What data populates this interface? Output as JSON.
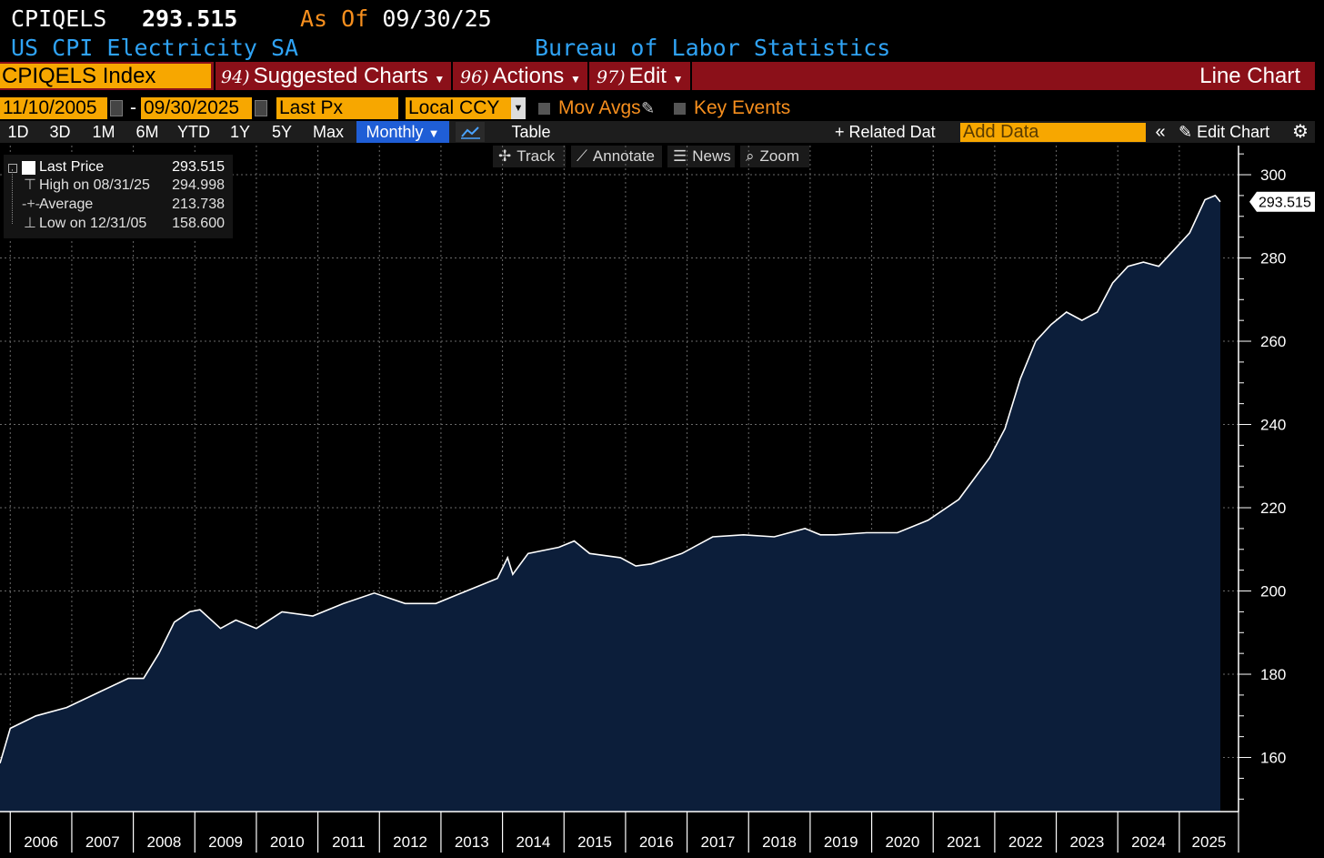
{
  "header": {
    "ticker": "CPIQELS",
    "last_price": "293.515",
    "as_of_label": "As Of",
    "as_of_date": "09/30/25",
    "name": "US CPI Electricity SA",
    "source": "Bureau of Labor Statistics"
  },
  "toolbar": {
    "security": "CPIQELS Index",
    "suggested_num": "94)",
    "suggested_label": "Suggested Charts",
    "actions_num": "96)",
    "actions_label": "Actions",
    "edit_num": "97)",
    "edit_label": "Edit",
    "chart_type": "Line Chart"
  },
  "params": {
    "start_date": "11/10/2005",
    "date_sep": "-",
    "end_date": "09/30/2025",
    "field": "Last Px",
    "currency": "Local CCY",
    "mov_avgs": "Mov Avgs",
    "key_events": "Key Events"
  },
  "periods": {
    "items": [
      "1D",
      "3D",
      "1M",
      "6M",
      "YTD",
      "1Y",
      "5Y",
      "Max"
    ],
    "monthly": "Monthly",
    "table": "Table",
    "related": "Related Dat",
    "add_data_placeholder": "Add Data",
    "edit_chart": "Edit Chart"
  },
  "tools": {
    "track": "Track",
    "annotate": "Annotate",
    "news": "News",
    "zoom": "Zoom"
  },
  "legend": {
    "last_label": "Last Price",
    "last_value": "293.515",
    "high_label": "High on 08/31/25",
    "high_value": "294.998",
    "avg_label": "Average",
    "avg_value": "213.738",
    "low_label": "Low on 12/31/05",
    "low_value": "158.600"
  },
  "colors": {
    "accent_orange": "#f7a700",
    "toolbar_red": "#8b1019",
    "area_fill": "#0c1e3a",
    "header_blue": "#2fa3f5",
    "date_orange": "#f78f1e"
  },
  "chart_data": {
    "type": "area",
    "x_start": "2005-11",
    "x_end": "2025-09",
    "x_ticks": [
      "2006",
      "2007",
      "2008",
      "2009",
      "2010",
      "2011",
      "2012",
      "2013",
      "2014",
      "2015",
      "2016",
      "2017",
      "2018",
      "2019",
      "2020",
      "2021",
      "2022",
      "2023",
      "2024",
      "2025"
    ],
    "y_ticks": [
      160,
      180,
      200,
      220,
      240,
      260,
      280,
      300
    ],
    "ylim": [
      147,
      307
    ],
    "last_value_label": "293.515",
    "grid": true,
    "axis_side": "right",
    "series": [
      {
        "x": [
          "2005-11",
          "2006-01",
          "2006-06",
          "2006-12",
          "2007-06",
          "2007-12",
          "2008-03",
          "2008-06",
          "2008-09",
          "2008-12",
          "2009-02",
          "2009-06",
          "2009-09",
          "2010-01",
          "2010-06",
          "2010-12",
          "2011-06",
          "2011-12",
          "2012-06",
          "2012-12",
          "2013-06",
          "2013-12",
          "2014-02",
          "2014-03",
          "2014-06",
          "2014-12",
          "2015-03",
          "2015-06",
          "2015-12",
          "2016-03",
          "2016-06",
          "2016-12",
          "2017-06",
          "2017-12",
          "2018-06",
          "2018-12",
          "2019-03",
          "2019-06",
          "2019-12",
          "2020-06",
          "2020-12",
          "2021-06",
          "2021-12",
          "2022-03",
          "2022-06",
          "2022-09",
          "2022-12",
          "2023-03",
          "2023-06",
          "2023-09",
          "2023-12",
          "2024-03",
          "2024-06",
          "2024-09",
          "2024-12",
          "2025-03",
          "2025-06",
          "2025-08",
          "2025-09"
        ],
        "values": [
          158.6,
          167.0,
          170.0,
          172.0,
          175.5,
          179.0,
          179.0,
          185.0,
          192.5,
          195.0,
          195.5,
          191.0,
          193.0,
          191.0,
          195.0,
          194.0,
          197.0,
          199.5,
          197.0,
          197.0,
          200.0,
          203.0,
          208.0,
          204.0,
          209.0,
          210.5,
          212.0,
          209.0,
          208.0,
          206.0,
          206.5,
          209.0,
          213.0,
          213.5,
          213.0,
          215.0,
          213.5,
          213.5,
          214.0,
          214.0,
          217.0,
          222.0,
          232.0,
          239.0,
          251.0,
          260.0,
          264.0,
          267.0,
          265.0,
          267.0,
          274.0,
          278.0,
          279.0,
          278.0,
          282.0,
          286.0,
          294.0,
          295.0,
          293.515
        ]
      }
    ]
  }
}
